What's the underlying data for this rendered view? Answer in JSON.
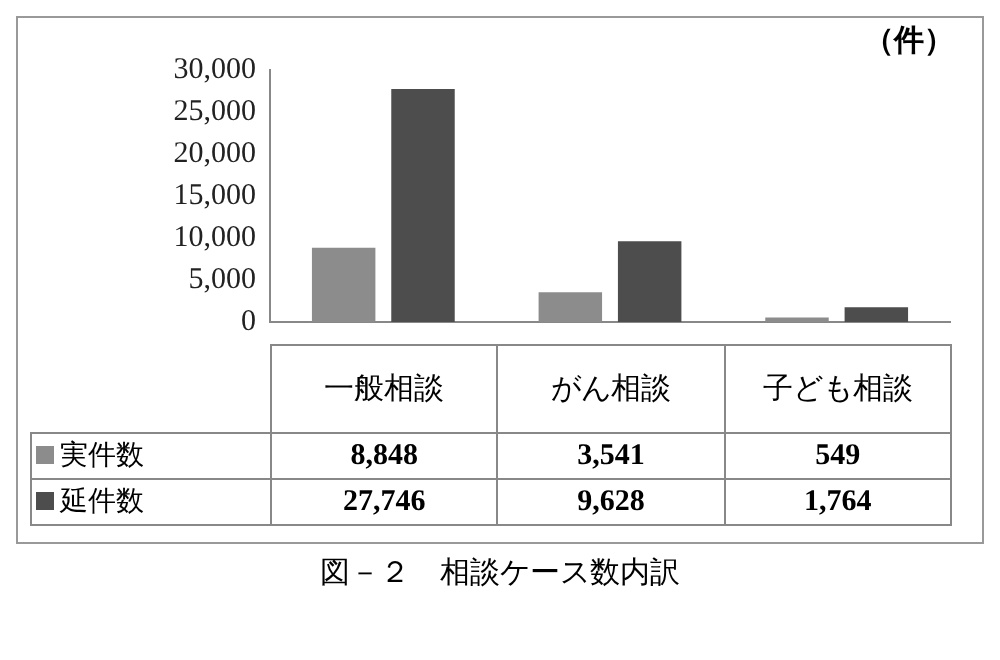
{
  "chart_data": {
    "type": "bar",
    "title": "図－２　相談ケース数内訳",
    "ylabel": "（件）",
    "categories": [
      "一般相談",
      "がん相談",
      "子ども相談"
    ],
    "series": [
      {
        "name": "実件数",
        "color": "#8c8c8c",
        "values": [
          8848,
          3541,
          549
        ],
        "value_labels": [
          "8,848",
          "3,541",
          "549"
        ]
      },
      {
        "name": "延件数",
        "color": "#4d4d4d",
        "values": [
          27746,
          9628,
          1764
        ],
        "value_labels": [
          "27,746",
          "9,628",
          "1,764"
        ]
      }
    ],
    "ylim": [
      0,
      30000
    ],
    "yticks": [
      0,
      {
        "value": 5000,
        "label": "5,000"
      },
      {
        "value": 10000,
        "label": "10,000"
      },
      {
        "value": 15000,
        "label": "15,000"
      },
      {
        "value": 20000,
        "label": "20,000"
      },
      {
        "value": 25000,
        "label": "25,000"
      },
      {
        "value": 30000,
        "label": "30,000"
      }
    ],
    "grid": false,
    "legend": "bottom"
  }
}
